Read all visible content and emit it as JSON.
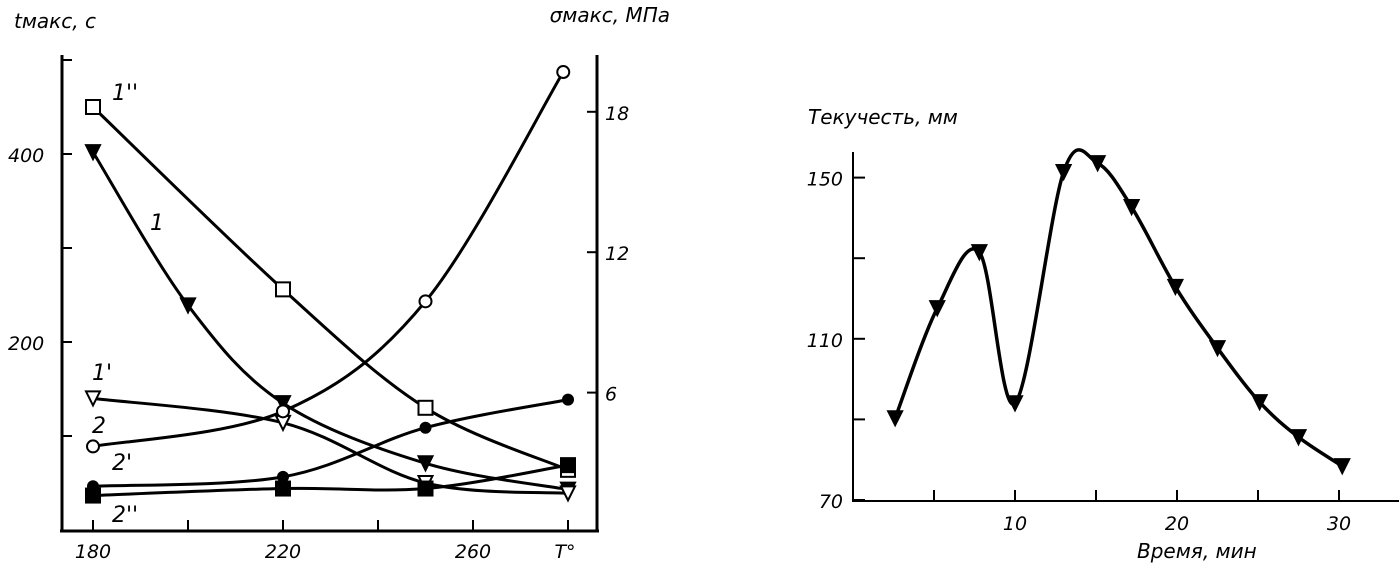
{
  "chart_data": [
    {
      "type": "line",
      "xlabel": "T°",
      "ylabel_left": "tмакс, с",
      "ylabel_right": "σмакс, МПа",
      "xlim": [
        175,
        283
      ],
      "ylim_left": [
        0,
        500
      ],
      "ylim_right": [
        0,
        20
      ],
      "x_ticks": [
        180,
        200,
        220,
        240,
        260,
        280
      ],
      "x_tick_labels": [
        "180",
        "",
        "220",
        "",
        "260",
        ""
      ],
      "y_left_ticks": [
        100,
        200,
        300,
        400,
        500
      ],
      "y_left_tick_labels": [
        "",
        "200",
        "",
        "400",
        ""
      ],
      "y_right_ticks": [
        6,
        12,
        18
      ],
      "y_right_tick_labels": [
        "6",
        "12",
        "18"
      ],
      "grid": false,
      "series": [
        {
          "name": "1''",
          "axis": "left",
          "marker": "square-open",
          "x": [
            180,
            220,
            250,
            280
          ],
          "values": [
            450,
            256,
            130,
            64
          ]
        },
        {
          "name": "1",
          "axis": "left",
          "marker": "triangle-filled",
          "x": [
            180,
            200,
            220,
            250,
            280
          ],
          "values": [
            402,
            239,
            135,
            71,
            43
          ]
        },
        {
          "name": "1'",
          "axis": "left",
          "marker": "triangle-open",
          "x": [
            180,
            220,
            250,
            280
          ],
          "values": [
            140,
            114,
            50,
            39
          ]
        },
        {
          "name": "2",
          "axis": "right",
          "marker": "circle-open",
          "x": [
            180,
            220,
            250,
            279
          ],
          "values": [
            3.7,
            5.2,
            9.9,
            19.7
          ]
        },
        {
          "name": "2'",
          "axis": "right",
          "marker": "circle-filled",
          "x": [
            180,
            220,
            250,
            280
          ],
          "values": [
            2.0,
            2.4,
            4.5,
            5.7
          ]
        },
        {
          "name": "2''",
          "axis": "right",
          "marker": "square-filled",
          "x": [
            180,
            220,
            250,
            280
          ],
          "values": [
            1.6,
            1.9,
            1.9,
            2.9
          ]
        }
      ]
    },
    {
      "type": "line",
      "xlabel": "Время, мин",
      "ylabel": "Текучесть, мм",
      "xlim": [
        0,
        34
      ],
      "ylim": [
        70,
        157
      ],
      "x_ticks": [
        5,
        10,
        15,
        20,
        25,
        30
      ],
      "x_tick_labels": [
        "",
        "10",
        "",
        "20",
        "",
        "30"
      ],
      "y_ticks": [
        70,
        90,
        110,
        130,
        150
      ],
      "y_tick_labels": [
        "70",
        "",
        "110",
        "",
        "150"
      ],
      "grid": false,
      "series": [
        {
          "name": "Текучесть",
          "marker": "triangle-filled",
          "x": [
            2.6,
            5.2,
            7.8,
            10.0,
            13.0,
            15.1,
            17.2,
            19.9,
            22.5,
            25.1,
            27.5,
            30.2
          ],
          "values": [
            90.3,
            117.6,
            131.5,
            94.0,
            151.4,
            153.6,
            142.7,
            122.9,
            107.7,
            94.3,
            85.6,
            78.4
          ]
        }
      ]
    }
  ]
}
